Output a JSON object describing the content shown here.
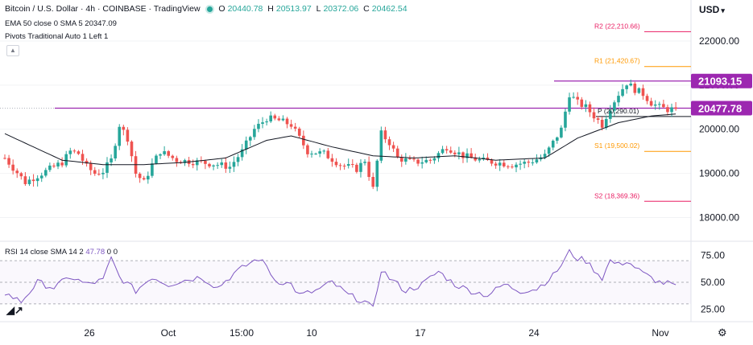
{
  "header": {
    "symbol": "Bitcoin / U.S. Dollar · 4h · COINBASE · TradingView",
    "ohlc": {
      "o_label": "O",
      "o": "20440.78",
      "h_label": "H",
      "h": "20513.97",
      "l_label": "L",
      "l": "20372.06",
      "c_label": "C",
      "c": "20462.54"
    },
    "ema_line": "EMA 50 close 0 SMA 5",
    "ema_value": "20347.09",
    "pivots_line": "Pivots Traditional Auto 1 Left 1",
    "collapse_icon": "chevron-up-icon"
  },
  "currency_selector": {
    "label": "USD",
    "icon": "chevron-down-icon"
  },
  "rsi": {
    "label": "RSI 14 close SMA 14 2",
    "value": "47.78",
    "extra1": "0",
    "extra2": "0"
  },
  "logo_icon": "tradingview-logo-icon",
  "settings_icon": "gear-icon",
  "colors": {
    "up": "#26a69a",
    "down": "#ef5350",
    "ema": "#131722",
    "resistance": "#9c27b0",
    "rsi": "#7e57c2",
    "r2": "#e91e63",
    "r1": "#ff9800",
    "p": "#131722",
    "s1": "#ff9800",
    "s2": "#e91e63"
  },
  "chart_data": {
    "type": "candlestick",
    "y_axis": {
      "min": 17500,
      "max": 22600,
      "ticks": [
        "22000.00",
        "21000.00",
        "20000.00",
        "19000.00",
        "18000.00"
      ]
    },
    "x_axis": {
      "ticks": [
        "26",
        "Oct",
        "15:00",
        "10",
        "17",
        "24",
        "Nov"
      ]
    },
    "price_labels": [
      {
        "text": "21093.15",
        "value": 21093.15,
        "color": "#9c27b0"
      },
      {
        "text": "20477.78",
        "value": 20477.78,
        "color": "#9c27b0"
      }
    ],
    "horizontal_lines": [
      {
        "name": "resistance-upper",
        "value": 21093.15,
        "color": "#9c27b0"
      },
      {
        "name": "resistance-lower",
        "value": 20477.78,
        "color": "#9c27b0"
      }
    ],
    "pivots": [
      {
        "label": "R2",
        "text": "(22,210.66)",
        "value": 22210.66,
        "color": "#e91e63"
      },
      {
        "label": "R1",
        "text": "(21,420.67)",
        "value": 21420.67,
        "color": "#ff9800"
      },
      {
        "label": "P",
        "text": "(20,290.01)",
        "value": 20290.01,
        "color": "#131722"
      },
      {
        "label": "S1",
        "text": "(19,500.02)",
        "value": 19500.02,
        "color": "#ff9800"
      },
      {
        "label": "S2",
        "text": "(18,369.36)",
        "value": 18369.36,
        "color": "#e91e63"
      }
    ],
    "price_anchors": [
      [
        0,
        19350
      ],
      [
        5,
        18800
      ],
      [
        10,
        19050
      ],
      [
        14,
        19250
      ],
      [
        16,
        19500
      ],
      [
        18,
        19450
      ],
      [
        20,
        19150
      ],
      [
        22,
        19000
      ],
      [
        24,
        19050
      ],
      [
        26,
        19300
      ],
      [
        28,
        20100
      ],
      [
        30,
        19800
      ],
      [
        32,
        19000
      ],
      [
        34,
        18800
      ],
      [
        36,
        19200
      ],
      [
        38,
        19500
      ],
      [
        42,
        19300
      ],
      [
        48,
        19250
      ],
      [
        52,
        19200
      ],
      [
        55,
        19150
      ],
      [
        58,
        19500
      ],
      [
        61,
        20000
      ],
      [
        64,
        20250
      ],
      [
        67,
        20200
      ],
      [
        70,
        20100
      ],
      [
        72,
        19800
      ],
      [
        74,
        19500
      ],
      [
        78,
        19450
      ],
      [
        82,
        19200
      ],
      [
        86,
        19100
      ],
      [
        88,
        19300
      ],
      [
        90,
        18650
      ],
      [
        92,
        19900
      ],
      [
        94,
        19700
      ],
      [
        96,
        19350
      ],
      [
        100,
        19250
      ],
      [
        104,
        19300
      ],
      [
        108,
        19600
      ],
      [
        110,
        19500
      ],
      [
        112,
        19400
      ],
      [
        116,
        19300
      ],
      [
        120,
        19250
      ],
      [
        124,
        19200
      ],
      [
        128,
        19250
      ],
      [
        132,
        19400
      ],
      [
        134,
        19700
      ],
      [
        136,
        20000
      ],
      [
        138,
        20800
      ],
      [
        140,
        20600
      ],
      [
        142,
        20500
      ],
      [
        144,
        20300
      ],
      [
        146,
        20100
      ],
      [
        148,
        20500
      ],
      [
        150,
        20800
      ],
      [
        152,
        21050
      ],
      [
        154,
        20900
      ],
      [
        156,
        20800
      ],
      [
        158,
        20600
      ],
      [
        160,
        20500
      ],
      [
        162,
        20450
      ],
      [
        164,
        20460
      ]
    ],
    "ema_anchors": [
      [
        0,
        19900
      ],
      [
        14,
        19300
      ],
      [
        24,
        19200
      ],
      [
        34,
        19200
      ],
      [
        44,
        19250
      ],
      [
        54,
        19350
      ],
      [
        64,
        19750
      ],
      [
        70,
        19850
      ],
      [
        80,
        19600
      ],
      [
        90,
        19400
      ],
      [
        100,
        19350
      ],
      [
        110,
        19400
      ],
      [
        120,
        19300
      ],
      [
        132,
        19350
      ],
      [
        140,
        19800
      ],
      [
        150,
        20150
      ],
      [
        158,
        20300
      ],
      [
        164,
        20347
      ]
    ],
    "rsi_axis": {
      "min": 15,
      "max": 85,
      "ticks": [
        "75.00",
        "50.00",
        "25.00"
      ],
      "bands": [
        70,
        50,
        30
      ]
    },
    "rsi_anchors": [
      [
        0,
        40
      ],
      [
        4,
        32
      ],
      [
        8,
        50
      ],
      [
        12,
        45
      ],
      [
        16,
        55
      ],
      [
        20,
        48
      ],
      [
        24,
        52
      ],
      [
        26,
        72
      ],
      [
        28,
        55
      ],
      [
        32,
        42
      ],
      [
        36,
        55
      ],
      [
        40,
        48
      ],
      [
        44,
        52
      ],
      [
        48,
        55
      ],
      [
        52,
        45
      ],
      [
        56,
        58
      ],
      [
        60,
        68
      ],
      [
        62,
        72
      ],
      [
        64,
        65
      ],
      [
        66,
        52
      ],
      [
        70,
        48
      ],
      [
        72,
        38
      ],
      [
        76,
        42
      ],
      [
        80,
        50
      ],
      [
        84,
        38
      ],
      [
        88,
        32
      ],
      [
        90,
        25
      ],
      [
        92,
        62
      ],
      [
        94,
        54
      ],
      [
        98,
        42
      ],
      [
        102,
        48
      ],
      [
        106,
        60
      ],
      [
        110,
        48
      ],
      [
        114,
        42
      ],
      [
        118,
        38
      ],
      [
        122,
        48
      ],
      [
        126,
        42
      ],
      [
        130,
        44
      ],
      [
        134,
        56
      ],
      [
        136,
        66
      ],
      [
        138,
        78
      ],
      [
        140,
        72
      ],
      [
        142,
        70
      ],
      [
        146,
        54
      ],
      [
        148,
        70
      ],
      [
        150,
        66
      ],
      [
        152,
        70
      ],
      [
        156,
        58
      ],
      [
        160,
        50
      ],
      [
        164,
        47.78
      ]
    ]
  }
}
